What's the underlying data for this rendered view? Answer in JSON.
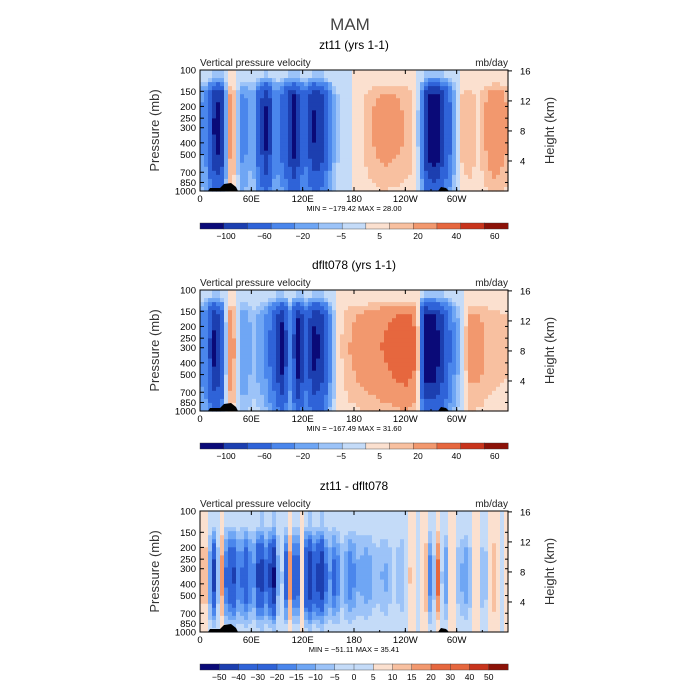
{
  "page": {
    "title": "MAM"
  },
  "colors": {
    "ramp": [
      "#0a0a78",
      "#1c3fb0",
      "#2f63d8",
      "#4a86ec",
      "#6fa6f4",
      "#9cc3f8",
      "#c4dbf8",
      "#fbe0cf",
      "#f8c0a0",
      "#f2986e",
      "#e6673e",
      "#c8341c",
      "#8c1208"
    ],
    "land": "#000000"
  },
  "chart_data": [
    {
      "type": "heatmap",
      "title": "zt11 (yrs 1-1)",
      "left_label": "Vertical pressure velocity",
      "right_label": "mb/day",
      "ylabel": "Pressure (mb)",
      "ylabel_right": "Height (km)",
      "x_ticks": [
        "0",
        "60E",
        "120E",
        "180",
        "120W",
        "60W"
      ],
      "x_tick_lon": [
        0,
        60,
        120,
        180,
        240,
        300
      ],
      "xlim": [
        0,
        360
      ],
      "y_ticks": [
        "100",
        "150",
        "200",
        "250",
        "300",
        "400",
        "500",
        "700",
        "850",
        "1000"
      ],
      "y_tick_values": [
        100,
        150,
        200,
        250,
        300,
        400,
        500,
        700,
        850,
        1000
      ],
      "ylim": [
        100,
        1000
      ],
      "height_ticks": [
        "16",
        "12",
        "8",
        "4"
      ],
      "height_tick_km": [
        16,
        12,
        8,
        4
      ],
      "stats": "MIN = −179.42   MAX =   28.00",
      "colorbar_labels": [
        "−100",
        "−60",
        "−20",
        "−5",
        "5",
        "20",
        "40",
        "60"
      ],
      "field": {
        "profile": "upper",
        "columns": [
          {
            "lon": 0,
            "value": -20
          },
          {
            "lon": 8,
            "value": -30
          },
          {
            "lon": 16,
            "value": -120
          },
          {
            "lon": 24,
            "value": -150
          },
          {
            "lon": 32,
            "value": 15
          },
          {
            "lon": 40,
            "value": 8
          },
          {
            "lon": 50,
            "value": -30
          },
          {
            "lon": 62,
            "value": -10
          },
          {
            "lon": 78,
            "value": -140
          },
          {
            "lon": 88,
            "value": -20
          },
          {
            "lon": 98,
            "value": -60
          },
          {
            "lon": 110,
            "value": -150
          },
          {
            "lon": 122,
            "value": -40
          },
          {
            "lon": 132,
            "value": -130
          },
          {
            "lon": 142,
            "value": -110
          },
          {
            "lon": 150,
            "value": -40
          },
          {
            "lon": 158,
            "value": -8
          },
          {
            "lon": 170,
            "value": -3
          },
          {
            "lon": 185,
            "value": 2
          },
          {
            "lon": 200,
            "value": 10
          },
          {
            "lon": 215,
            "value": 14
          },
          {
            "lon": 230,
            "value": 12
          },
          {
            "lon": 245,
            "value": 9
          },
          {
            "lon": 258,
            "value": -10
          },
          {
            "lon": 266,
            "value": -150
          },
          {
            "lon": 276,
            "value": -175
          },
          {
            "lon": 286,
            "value": -90
          },
          {
            "lon": 296,
            "value": -20
          },
          {
            "lon": 305,
            "value": 6
          },
          {
            "lon": 315,
            "value": 10
          },
          {
            "lon": 325,
            "value": 4
          },
          {
            "lon": 335,
            "value": 12
          },
          {
            "lon": 345,
            "value": 20
          },
          {
            "lon": 360,
            "value": 10
          }
        ]
      }
    },
    {
      "type": "heatmap",
      "title": "dflt078 (yrs 1-1)",
      "left_label": "Vertical pressure velocity",
      "right_label": "mb/day",
      "ylabel": "Pressure (mb)",
      "ylabel_right": "Height (km)",
      "x_ticks": [
        "0",
        "60E",
        "120E",
        "180",
        "120W",
        "60W"
      ],
      "x_tick_lon": [
        0,
        60,
        120,
        180,
        240,
        300
      ],
      "xlim": [
        0,
        360
      ],
      "y_ticks": [
        "100",
        "150",
        "200",
        "250",
        "300",
        "400",
        "500",
        "700",
        "850",
        "1000"
      ],
      "y_tick_values": [
        100,
        150,
        200,
        250,
        300,
        400,
        500,
        700,
        850,
        1000
      ],
      "ylim": [
        100,
        1000
      ],
      "height_ticks": [
        "16",
        "12",
        "8",
        "4"
      ],
      "height_tick_km": [
        16,
        12,
        8,
        4
      ],
      "stats": "MIN = −167.49   MAX =   31.60",
      "colorbar_labels": [
        "−100",
        "−60",
        "−20",
        "−5",
        "5",
        "20",
        "40",
        "60"
      ],
      "field": {
        "profile": "upper",
        "columns": [
          {
            "lon": 0,
            "value": -25
          },
          {
            "lon": 8,
            "value": -40
          },
          {
            "lon": 16,
            "value": -130
          },
          {
            "lon": 24,
            "value": -100
          },
          {
            "lon": 32,
            "value": 18
          },
          {
            "lon": 40,
            "value": 10
          },
          {
            "lon": 50,
            "value": -20
          },
          {
            "lon": 62,
            "value": -8
          },
          {
            "lon": 76,
            "value": -20
          },
          {
            "lon": 86,
            "value": -60
          },
          {
            "lon": 96,
            "value": -140
          },
          {
            "lon": 106,
            "value": -20
          },
          {
            "lon": 114,
            "value": -150
          },
          {
            "lon": 124,
            "value": -60
          },
          {
            "lon": 134,
            "value": -140
          },
          {
            "lon": 144,
            "value": -100
          },
          {
            "lon": 152,
            "value": -25
          },
          {
            "lon": 160,
            "value": 2
          },
          {
            "lon": 175,
            "value": 10
          },
          {
            "lon": 190,
            "value": 14
          },
          {
            "lon": 205,
            "value": 18
          },
          {
            "lon": 220,
            "value": 22
          },
          {
            "lon": 240,
            "value": 28
          },
          {
            "lon": 254,
            "value": 20
          },
          {
            "lon": 264,
            "value": -160
          },
          {
            "lon": 274,
            "value": -150
          },
          {
            "lon": 284,
            "value": -100
          },
          {
            "lon": 294,
            "value": -30
          },
          {
            "lon": 304,
            "value": -6
          },
          {
            "lon": 316,
            "value": 14
          },
          {
            "lon": 328,
            "value": 12
          },
          {
            "lon": 340,
            "value": 8
          },
          {
            "lon": 360,
            "value": 6
          }
        ]
      }
    },
    {
      "type": "heatmap",
      "title": "zt11 - dflt078",
      "left_label": "Vertical pressure velocity",
      "right_label": "mb/day",
      "ylabel": "Pressure (mb)",
      "ylabel_right": "Height (km)",
      "x_ticks": [
        "0",
        "60E",
        "120E",
        "180",
        "120W",
        "60W"
      ],
      "x_tick_lon": [
        0,
        60,
        120,
        180,
        240,
        300
      ],
      "xlim": [
        0,
        360
      ],
      "y_ticks": [
        "100",
        "150",
        "200",
        "250",
        "300",
        "400",
        "500",
        "700",
        "850",
        "1000"
      ],
      "y_tick_values": [
        100,
        150,
        200,
        250,
        300,
        400,
        500,
        700,
        850,
        1000
      ],
      "ylim": [
        100,
        1000
      ],
      "height_ticks": [
        "16",
        "12",
        "8",
        "4"
      ],
      "height_tick_km": [
        16,
        12,
        8,
        4
      ],
      "stats": "MIN = −51.11   MAX =   35.41",
      "colorbar_labels": [
        "−50",
        "−40",
        "−30",
        "−20",
        "−15",
        "−10",
        "−5",
        "0",
        "5",
        "10",
        "15",
        "20",
        "30",
        "40",
        "50"
      ],
      "field": {
        "profile": "difference",
        "columns": [
          {
            "lon": 0,
            "value": 4
          },
          {
            "lon": 6,
            "value": 12
          },
          {
            "lon": 12,
            "value": -15
          },
          {
            "lon": 18,
            "value": -40
          },
          {
            "lon": 24,
            "value": 25
          },
          {
            "lon": 30,
            "value": -20
          },
          {
            "lon": 38,
            "value": -35
          },
          {
            "lon": 46,
            "value": -15
          },
          {
            "lon": 54,
            "value": -30
          },
          {
            "lon": 62,
            "value": -12
          },
          {
            "lon": 70,
            "value": -40
          },
          {
            "lon": 78,
            "value": -20
          },
          {
            "lon": 86,
            "value": -45
          },
          {
            "lon": 94,
            "value": 6
          },
          {
            "lon": 100,
            "value": -30
          },
          {
            "lon": 106,
            "value": 20
          },
          {
            "lon": 112,
            "value": -50
          },
          {
            "lon": 118,
            "value": 12
          },
          {
            "lon": 126,
            "value": -45
          },
          {
            "lon": 134,
            "value": -25
          },
          {
            "lon": 142,
            "value": -40
          },
          {
            "lon": 150,
            "value": -12
          },
          {
            "lon": 158,
            "value": -25
          },
          {
            "lon": 166,
            "value": -8
          },
          {
            "lon": 176,
            "value": -20
          },
          {
            "lon": 186,
            "value": -10
          },
          {
            "lon": 196,
            "value": -15
          },
          {
            "lon": 206,
            "value": -6
          },
          {
            "lon": 216,
            "value": -12
          },
          {
            "lon": 226,
            "value": -4
          },
          {
            "lon": 236,
            "value": -10
          },
          {
            "lon": 246,
            "value": 6
          },
          {
            "lon": 256,
            "value": -6
          },
          {
            "lon": 264,
            "value": 10
          },
          {
            "lon": 270,
            "value": -25
          },
          {
            "lon": 278,
            "value": 18
          },
          {
            "lon": 286,
            "value": -20
          },
          {
            "lon": 294,
            "value": 10
          },
          {
            "lon": 302,
            "value": -8
          },
          {
            "lon": 312,
            "value": -15
          },
          {
            "lon": 322,
            "value": 6
          },
          {
            "lon": 332,
            "value": -12
          },
          {
            "lon": 342,
            "value": 12
          },
          {
            "lon": 352,
            "value": -6
          },
          {
            "lon": 360,
            "value": 4
          }
        ]
      }
    }
  ]
}
